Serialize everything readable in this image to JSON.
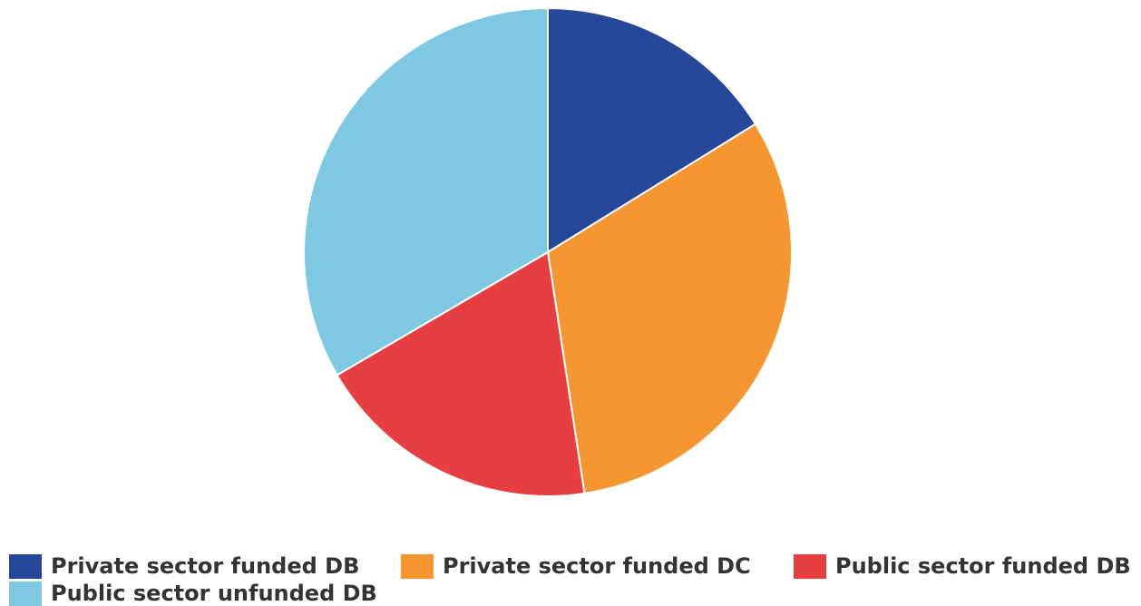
{
  "chart_data": {
    "type": "pie",
    "title": "",
    "start_angle_deg": 0,
    "direction": "clockwise",
    "slices": [
      {
        "name": "Private sector funded DB",
        "value": 16.2,
        "color": "#27479a"
      },
      {
        "name": "Private sector funded DC",
        "value": 31.4,
        "color": "#f59630"
      },
      {
        "name": "Public sector funded DB",
        "value": 19.0,
        "color": "#e63e41"
      },
      {
        "name": "Public sector unfunded DB",
        "value": 33.4,
        "color": "#7ec8e1"
      }
    ],
    "legend_position": "bottom"
  }
}
